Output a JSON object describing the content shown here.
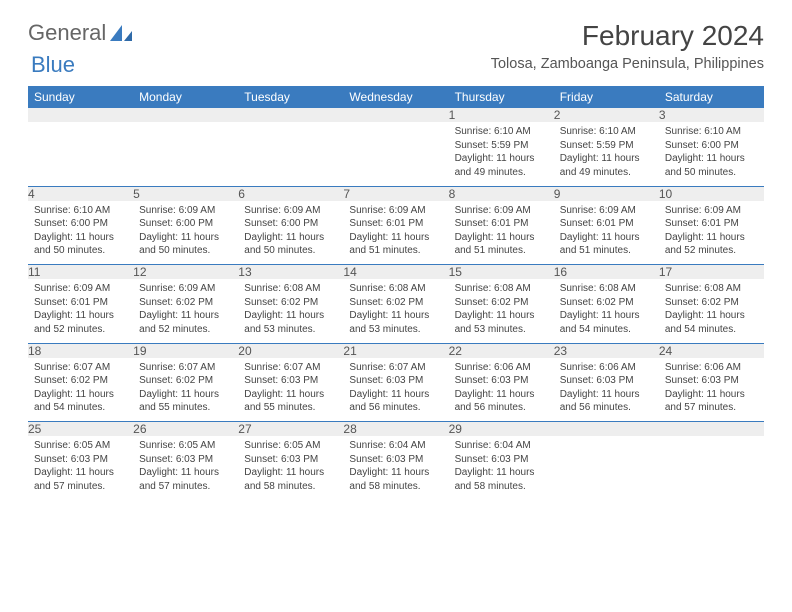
{
  "brand": {
    "part1": "General",
    "part2": "Blue"
  },
  "title": "February 2024",
  "location": "Tolosa, Zamboanga Peninsula, Philippines",
  "colors": {
    "header_bg": "#3a7bbf",
    "header_text": "#ffffff",
    "daynum_bg": "#eeeeee",
    "border": "#3a7bbf",
    "body_text": "#444444",
    "page_bg": "#ffffff"
  },
  "typography": {
    "title_fontsize": 28,
    "location_fontsize": 14.5,
    "dayheader_fontsize": 12,
    "daynum_fontsize": 12,
    "cell_fontsize": 10
  },
  "day_headers": [
    "Sunday",
    "Monday",
    "Tuesday",
    "Wednesday",
    "Thursday",
    "Friday",
    "Saturday"
  ],
  "weeks": [
    {
      "nums": [
        "",
        "",
        "",
        "",
        "1",
        "2",
        "3"
      ],
      "cells": [
        null,
        null,
        null,
        null,
        {
          "sunrise": "6:10 AM",
          "sunset": "5:59 PM",
          "daylight": "11 hours and 49 minutes."
        },
        {
          "sunrise": "6:10 AM",
          "sunset": "5:59 PM",
          "daylight": "11 hours and 49 minutes."
        },
        {
          "sunrise": "6:10 AM",
          "sunset": "6:00 PM",
          "daylight": "11 hours and 50 minutes."
        }
      ]
    },
    {
      "nums": [
        "4",
        "5",
        "6",
        "7",
        "8",
        "9",
        "10"
      ],
      "cells": [
        {
          "sunrise": "6:10 AM",
          "sunset": "6:00 PM",
          "daylight": "11 hours and 50 minutes."
        },
        {
          "sunrise": "6:09 AM",
          "sunset": "6:00 PM",
          "daylight": "11 hours and 50 minutes."
        },
        {
          "sunrise": "6:09 AM",
          "sunset": "6:00 PM",
          "daylight": "11 hours and 50 minutes."
        },
        {
          "sunrise": "6:09 AM",
          "sunset": "6:01 PM",
          "daylight": "11 hours and 51 minutes."
        },
        {
          "sunrise": "6:09 AM",
          "sunset": "6:01 PM",
          "daylight": "11 hours and 51 minutes."
        },
        {
          "sunrise": "6:09 AM",
          "sunset": "6:01 PM",
          "daylight": "11 hours and 51 minutes."
        },
        {
          "sunrise": "6:09 AM",
          "sunset": "6:01 PM",
          "daylight": "11 hours and 52 minutes."
        }
      ]
    },
    {
      "nums": [
        "11",
        "12",
        "13",
        "14",
        "15",
        "16",
        "17"
      ],
      "cells": [
        {
          "sunrise": "6:09 AM",
          "sunset": "6:01 PM",
          "daylight": "11 hours and 52 minutes."
        },
        {
          "sunrise": "6:09 AM",
          "sunset": "6:02 PM",
          "daylight": "11 hours and 52 minutes."
        },
        {
          "sunrise": "6:08 AM",
          "sunset": "6:02 PM",
          "daylight": "11 hours and 53 minutes."
        },
        {
          "sunrise": "6:08 AM",
          "sunset": "6:02 PM",
          "daylight": "11 hours and 53 minutes."
        },
        {
          "sunrise": "6:08 AM",
          "sunset": "6:02 PM",
          "daylight": "11 hours and 53 minutes."
        },
        {
          "sunrise": "6:08 AM",
          "sunset": "6:02 PM",
          "daylight": "11 hours and 54 minutes."
        },
        {
          "sunrise": "6:08 AM",
          "sunset": "6:02 PM",
          "daylight": "11 hours and 54 minutes."
        }
      ]
    },
    {
      "nums": [
        "18",
        "19",
        "20",
        "21",
        "22",
        "23",
        "24"
      ],
      "cells": [
        {
          "sunrise": "6:07 AM",
          "sunset": "6:02 PM",
          "daylight": "11 hours and 54 minutes."
        },
        {
          "sunrise": "6:07 AM",
          "sunset": "6:02 PM",
          "daylight": "11 hours and 55 minutes."
        },
        {
          "sunrise": "6:07 AM",
          "sunset": "6:03 PM",
          "daylight": "11 hours and 55 minutes."
        },
        {
          "sunrise": "6:07 AM",
          "sunset": "6:03 PM",
          "daylight": "11 hours and 56 minutes."
        },
        {
          "sunrise": "6:06 AM",
          "sunset": "6:03 PM",
          "daylight": "11 hours and 56 minutes."
        },
        {
          "sunrise": "6:06 AM",
          "sunset": "6:03 PM",
          "daylight": "11 hours and 56 minutes."
        },
        {
          "sunrise": "6:06 AM",
          "sunset": "6:03 PM",
          "daylight": "11 hours and 57 minutes."
        }
      ]
    },
    {
      "nums": [
        "25",
        "26",
        "27",
        "28",
        "29",
        "",
        ""
      ],
      "cells": [
        {
          "sunrise": "6:05 AM",
          "sunset": "6:03 PM",
          "daylight": "11 hours and 57 minutes."
        },
        {
          "sunrise": "6:05 AM",
          "sunset": "6:03 PM",
          "daylight": "11 hours and 57 minutes."
        },
        {
          "sunrise": "6:05 AM",
          "sunset": "6:03 PM",
          "daylight": "11 hours and 58 minutes."
        },
        {
          "sunrise": "6:04 AM",
          "sunset": "6:03 PM",
          "daylight": "11 hours and 58 minutes."
        },
        {
          "sunrise": "6:04 AM",
          "sunset": "6:03 PM",
          "daylight": "11 hours and 58 minutes."
        },
        null,
        null
      ]
    }
  ],
  "labels": {
    "sunrise": "Sunrise:",
    "sunset": "Sunset:",
    "daylight": "Daylight:"
  }
}
